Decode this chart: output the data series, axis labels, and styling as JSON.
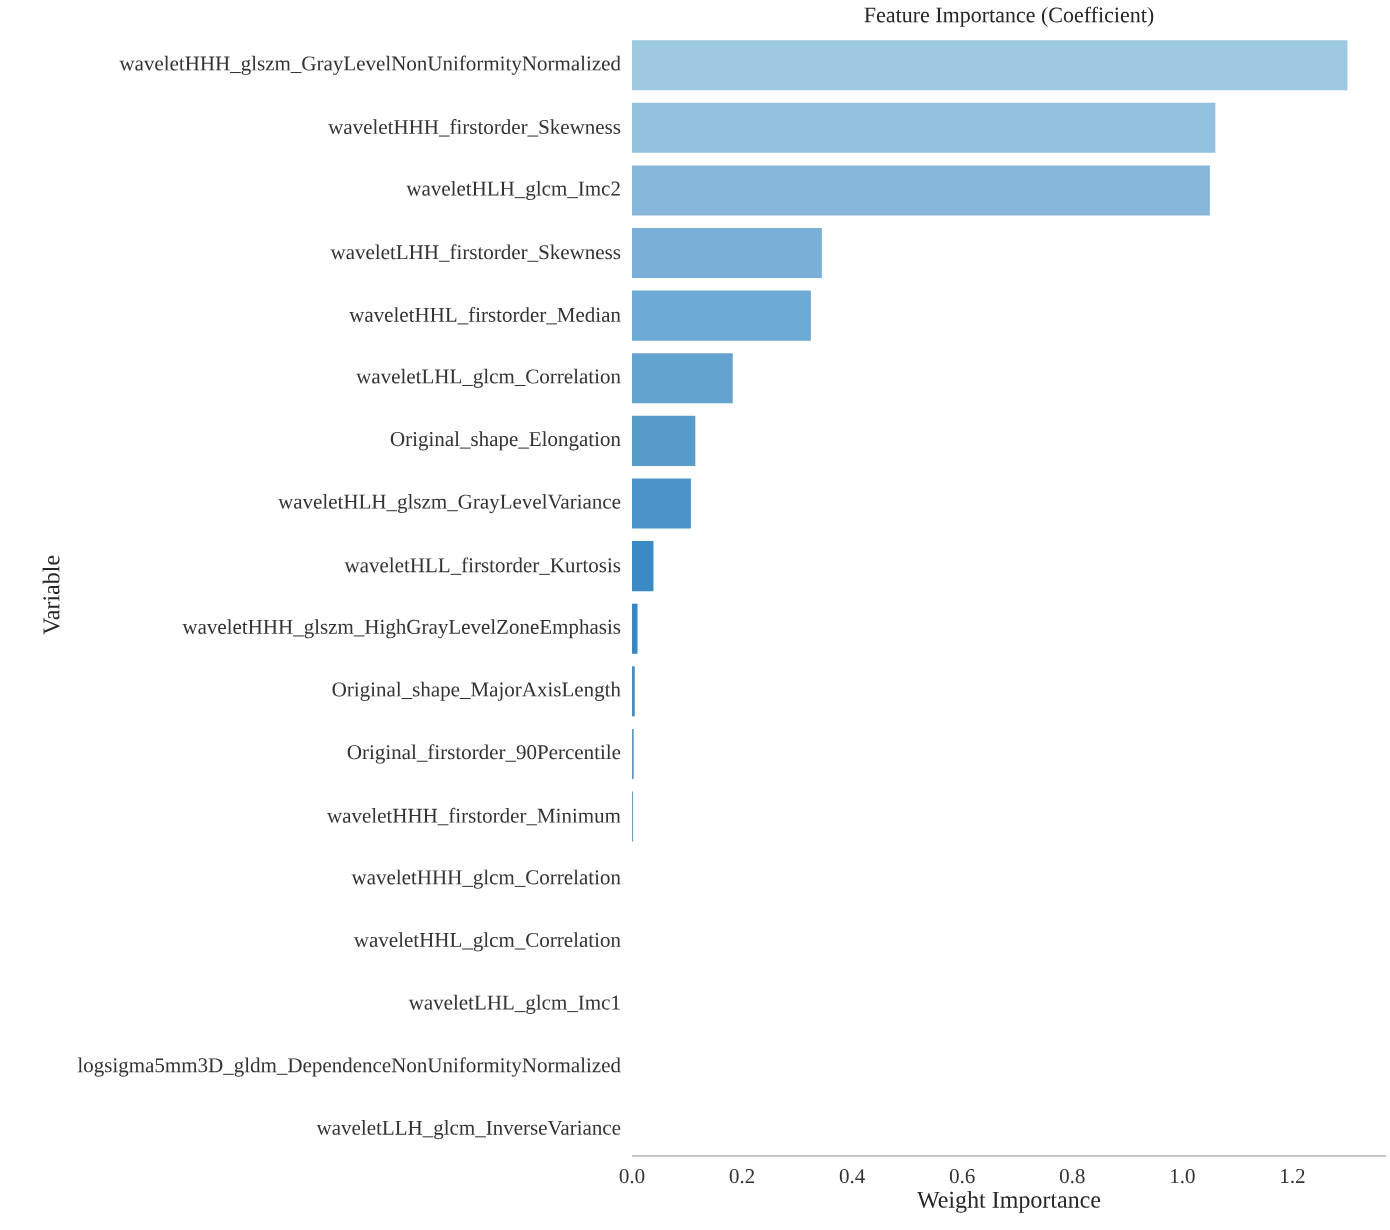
{
  "chart_data": {
    "type": "bar",
    "orientation": "horizontal",
    "title": "Feature Importance (Coefficient)",
    "xlabel": "Weight Importance",
    "ylabel": "Variable",
    "categories": [
      "waveletHHH_glszm_GrayLevelNonUniformityNormalized",
      "waveletHHH_firstorder_Skewness",
      "waveletHLH_glcm_Imc2",
      "waveletLHH_firstorder_Skewness",
      "waveletHHL_firstorder_Median",
      "waveletLHL_glcm_Correlation",
      "Original_shape_Elongation",
      "waveletHLH_glszm_GrayLevelVariance",
      "waveletHLL_firstorder_Kurtosis",
      "waveletHHH_glszm_HighGrayLevelZoneEmphasis",
      "Original_shape_MajorAxisLength",
      "Original_firstorder_90Percentile",
      "waveletHHH_firstorder_Minimum",
      "waveletHHH_glcm_Correlation",
      "waveletHHL_glcm_Correlation",
      "waveletLHL_glcm_Imc1",
      "logsigma5mm3D_gldm_DependenceNonUniformityNormalized",
      "waveletLLH_glcm_InverseVariance"
    ],
    "values": [
      1.3,
      1.06,
      1.05,
      0.345,
      0.325,
      0.183,
      0.115,
      0.107,
      0.039,
      0.01,
      0.005,
      0.003,
      0.002,
      0,
      0,
      0,
      0,
      0
    ],
    "colors": [
      "#9ecae1",
      "#93c2df",
      "#87b8da",
      "#7ab0d8",
      "#6daad4",
      "#62a3d0",
      "#579dcc",
      "#4a94ca",
      "#3c8ac5",
      "#3a86c2",
      "#4a8cc0",
      "#5b96c4",
      "#6f9fc8",
      "#80a9cc",
      "#8fb3d0",
      "#9dbcd4",
      "#abc5d8",
      "#b8cedc"
    ],
    "xlim": [
      0,
      1.37
    ],
    "xticks": [
      {
        "value": 0,
        "label": "0.0"
      },
      {
        "value": 0.2,
        "label": "0.2"
      },
      {
        "value": 0.4,
        "label": "0.4"
      },
      {
        "value": 0.6,
        "label": "0.6"
      },
      {
        "value": 0.8,
        "label": "0.8"
      },
      {
        "value": 1.0,
        "label": "1.0"
      },
      {
        "value": 1.2,
        "label": "1.2"
      }
    ]
  }
}
